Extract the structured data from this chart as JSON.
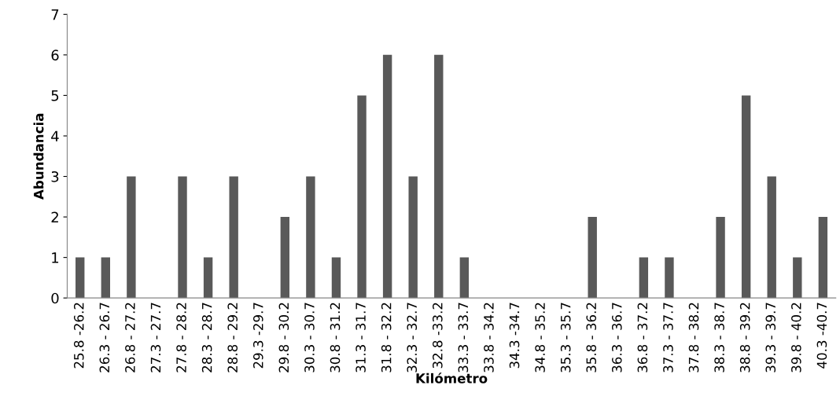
{
  "chart_data": {
    "type": "bar",
    "xlabel": "Kilómetro",
    "ylabel": "Abundancia",
    "categories": [
      "25.8 -26.2",
      "26.3 - 26.7",
      "26.8 - 27.2",
      "27.3 - 27.7",
      "27.8 - 28.2",
      "28.3 - 28.7",
      "28.8 - 29.2",
      "29.3 -29.7",
      "29.8 - 30.2",
      "30.3 - 30.7",
      "30.8 - 31.2",
      "31.3 - 31.7",
      "31.8 - 32.2",
      "32.3 - 32.7",
      "32.8 -33.2",
      "33.3 - 33.7",
      "33.8 - 34.2",
      "34.3 -34.7",
      "34.8 - 35.2",
      "35.3 - 35.7",
      "35.8 - 36.2",
      "36.3 - 36.7",
      "36.8 - 37.2",
      "37.3 - 37.7",
      "37.8 - 38.2",
      "38.3 - 38.7",
      "38.8 - 39.2",
      "39.3 - 39.7",
      "39.8 - 40.2",
      "40.3 -40.7"
    ],
    "values": [
      1,
      1,
      3,
      0,
      3,
      1,
      3,
      0,
      2,
      3,
      1,
      5,
      6,
      3,
      6,
      1,
      0,
      0,
      0,
      0,
      2,
      0,
      1,
      1,
      0,
      2,
      5,
      3,
      1,
      2
    ],
    "color": "#595959",
    "ylim": [
      0,
      7
    ],
    "yticks": [
      0,
      1,
      2,
      3,
      4,
      5,
      6,
      7
    ],
    "grid": false,
    "legend": false
  }
}
